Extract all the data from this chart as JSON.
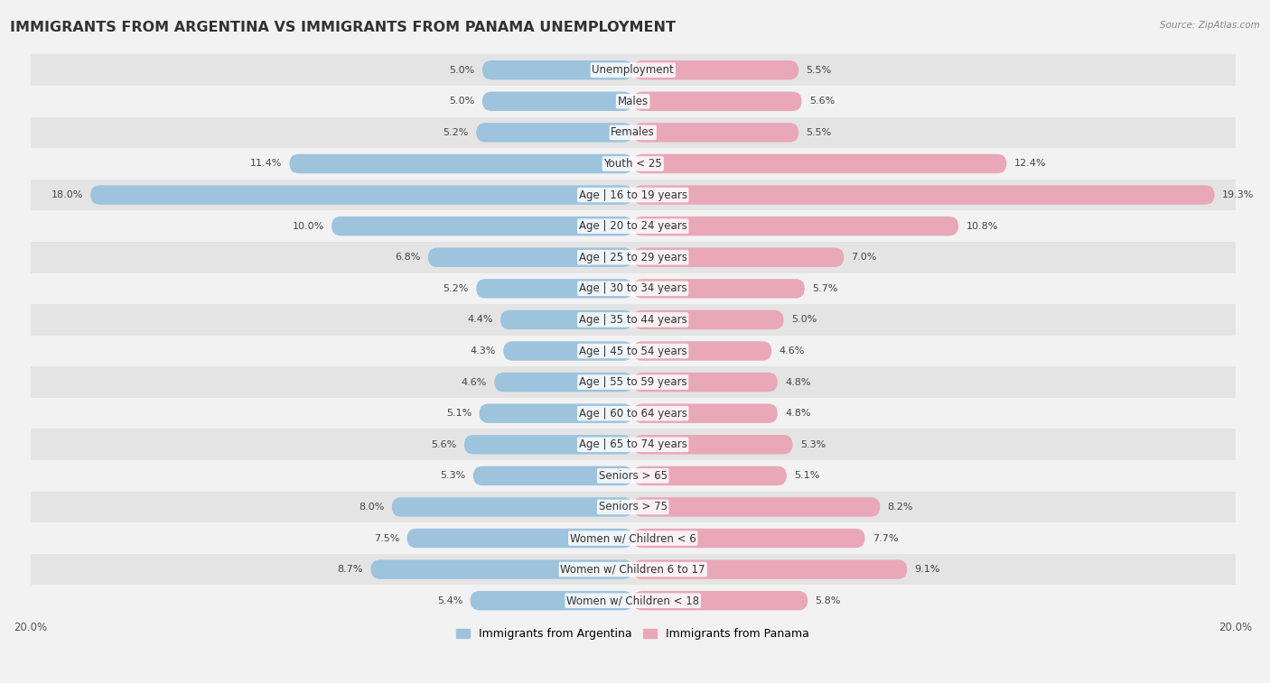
{
  "title": "IMMIGRANTS FROM ARGENTINA VS IMMIGRANTS FROM PANAMA UNEMPLOYMENT",
  "source": "Source: ZipAtlas.com",
  "categories": [
    "Unemployment",
    "Males",
    "Females",
    "Youth < 25",
    "Age | 16 to 19 years",
    "Age | 20 to 24 years",
    "Age | 25 to 29 years",
    "Age | 30 to 34 years",
    "Age | 35 to 44 years",
    "Age | 45 to 54 years",
    "Age | 55 to 59 years",
    "Age | 60 to 64 years",
    "Age | 65 to 74 years",
    "Seniors > 65",
    "Seniors > 75",
    "Women w/ Children < 6",
    "Women w/ Children 6 to 17",
    "Women w/ Children < 18"
  ],
  "argentina_values": [
    5.0,
    5.0,
    5.2,
    11.4,
    18.0,
    10.0,
    6.8,
    5.2,
    4.4,
    4.3,
    4.6,
    5.1,
    5.6,
    5.3,
    8.0,
    7.5,
    8.7,
    5.4
  ],
  "panama_values": [
    5.5,
    5.6,
    5.5,
    12.4,
    19.3,
    10.8,
    7.0,
    5.7,
    5.0,
    4.6,
    4.8,
    4.8,
    5.3,
    5.1,
    8.2,
    7.7,
    9.1,
    5.8
  ],
  "argentina_color": "#9dc3dd",
  "panama_color": "#e8a8b8",
  "argentina_label": "Immigrants from Argentina",
  "panama_label": "Immigrants from Panama",
  "axis_max": 20.0,
  "bg_color": "#f2f2f2",
  "row_color_dark": "#e4e4e4",
  "row_color_light": "#f2f2f2",
  "title_fontsize": 11.5,
  "label_fontsize": 8.5,
  "value_fontsize": 8.0,
  "bar_height": 0.62
}
